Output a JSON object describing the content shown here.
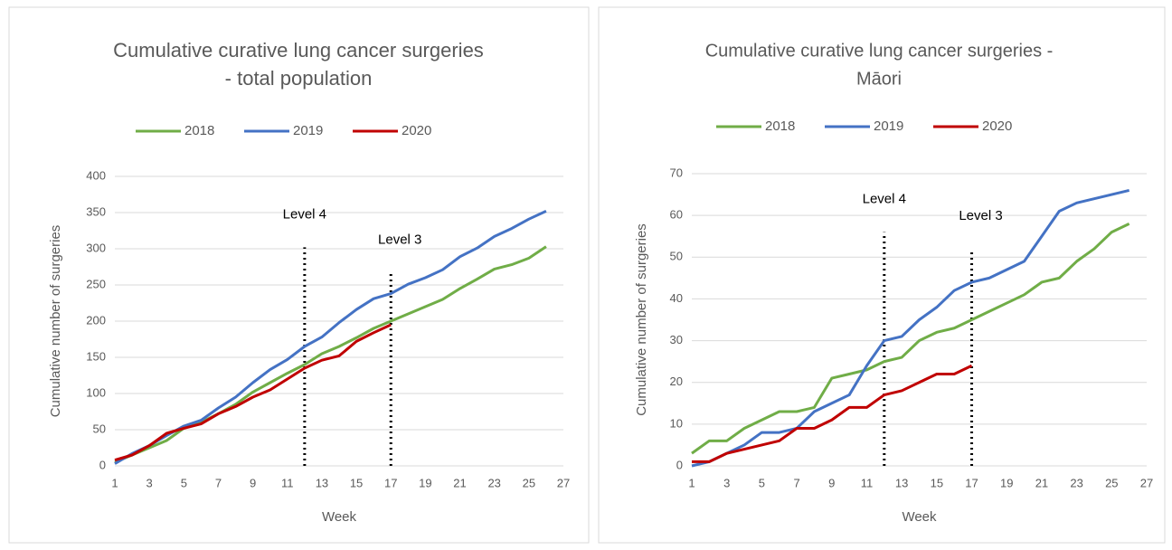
{
  "chart_data": [
    {
      "type": "line",
      "title": [
        "Cumulative curative lung cancer surgeries",
        "- total population"
      ],
      "x_label": "Week",
      "y_label": "Cumulative number of surgeries",
      "x": [
        1,
        2,
        3,
        4,
        5,
        6,
        7,
        8,
        9,
        10,
        11,
        12,
        13,
        14,
        15,
        16,
        17,
        18,
        19,
        20,
        21,
        22,
        23,
        24,
        25,
        26
      ],
      "xlim": [
        1,
        27
      ],
      "xticks": [
        1,
        3,
        5,
        7,
        9,
        11,
        13,
        15,
        17,
        19,
        21,
        23,
        25,
        27
      ],
      "ylim": [
        0,
        400
      ],
      "yticks": [
        0,
        50,
        100,
        150,
        200,
        250,
        300,
        350,
        400
      ],
      "grid": true,
      "legend": "top",
      "series": [
        {
          "name": "2018",
          "color": "#70ad47",
          "values": [
            5,
            15,
            25,
            35,
            52,
            60,
            72,
            85,
            102,
            115,
            128,
            140,
            155,
            165,
            177,
            190,
            200,
            210,
            220,
            230,
            245,
            258,
            272,
            278,
            287,
            303
          ]
        },
        {
          "name": "2019",
          "color": "#4472c4",
          "values": [
            3,
            17,
            28,
            42,
            55,
            63,
            80,
            95,
            115,
            133,
            147,
            165,
            178,
            198,
            216,
            231,
            238,
            251,
            260,
            271,
            289,
            301,
            317,
            328,
            341,
            352
          ]
        },
        {
          "name": "2020",
          "color": "#c00000",
          "values": [
            8,
            15,
            28,
            45,
            52,
            58,
            72,
            82,
            95,
            105,
            120,
            135,
            146,
            152,
            172,
            184,
            195,
            null,
            null,
            null,
            null,
            null,
            null,
            null,
            null,
            null
          ]
        }
      ],
      "annotations": [
        {
          "text": "Level 4",
          "x": 12,
          "top": 302
        },
        {
          "text": "Level 3",
          "x": 17,
          "top": 267
        }
      ]
    },
    {
      "type": "line",
      "title": [
        "Cumulative curative lung cancer surgeries -",
        "Māori"
      ],
      "x_label": "Week",
      "y_label": "Cumulative number of surgeries",
      "x": [
        1,
        2,
        3,
        4,
        5,
        6,
        7,
        8,
        9,
        10,
        11,
        12,
        13,
        14,
        15,
        16,
        17,
        18,
        19,
        20,
        21,
        22,
        23,
        24,
        25,
        26
      ],
      "xlim": [
        1,
        27
      ],
      "xticks": [
        1,
        3,
        5,
        7,
        9,
        11,
        13,
        15,
        17,
        19,
        21,
        23,
        25,
        27
      ],
      "ylim": [
        0,
        70
      ],
      "yticks": [
        0,
        10,
        20,
        30,
        40,
        50,
        60,
        70
      ],
      "grid": true,
      "legend": "top",
      "series": [
        {
          "name": "2018",
          "color": "#70ad47",
          "values": [
            3,
            6,
            6,
            9,
            11,
            13,
            13,
            14,
            21,
            22,
            23,
            25,
            26,
            30,
            32,
            33,
            35,
            37,
            39,
            41,
            44,
            45,
            49,
            52,
            56,
            58
          ]
        },
        {
          "name": "2019",
          "color": "#4472c4",
          "values": [
            0,
            1,
            3,
            5,
            8,
            8,
            9,
            13,
            15,
            17,
            24,
            30,
            31,
            35,
            38,
            42,
            44,
            45,
            47,
            49,
            55,
            61,
            63,
            64,
            65,
            66
          ]
        },
        {
          "name": "2020",
          "color": "#c00000",
          "values": [
            1,
            1,
            3,
            4,
            5,
            6,
            9,
            9,
            11,
            14,
            14,
            17,
            18,
            20,
            22,
            22,
            24,
            null,
            null,
            null,
            null,
            null,
            null,
            null,
            null,
            null
          ]
        }
      ],
      "annotations": [
        {
          "text": "Level 4",
          "x": 12,
          "top": 56
        },
        {
          "text": "Level 3",
          "x": 17,
          "top": 52
        }
      ]
    }
  ]
}
